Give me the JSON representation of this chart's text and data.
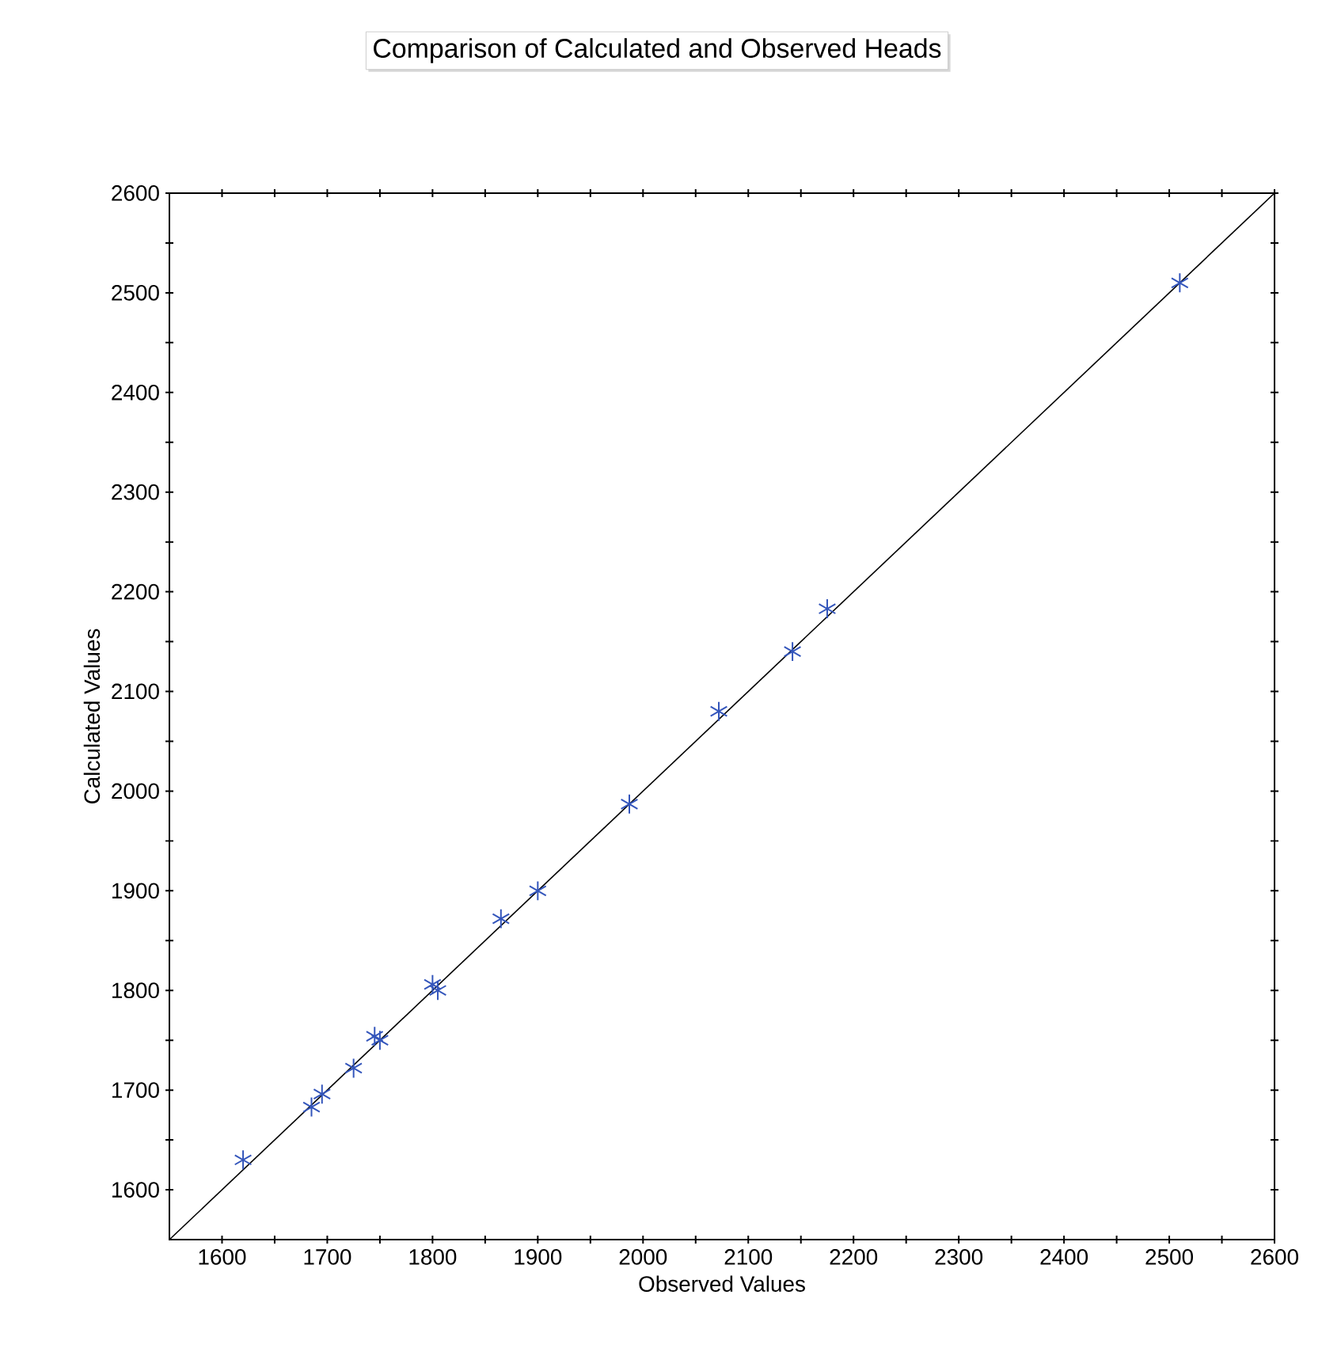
{
  "chart_data": {
    "type": "scatter",
    "title": "Comparison of Calculated and Observed Heads",
    "xlabel": "Observed Values",
    "ylabel": "Calculated Values",
    "xlim": [
      1550,
      2600
    ],
    "ylim": [
      1550,
      2600
    ],
    "xticks": [
      1600,
      {
        "value": 1650,
        "label": null
      },
      1700,
      {
        "value": 1750,
        "label": null
      },
      1800,
      {
        "value": 1850,
        "label": null
      },
      1900,
      {
        "value": 1950,
        "label": null
      },
      2000,
      {
        "value": 2050,
        "label": null
      },
      2100,
      {
        "value": 2150,
        "label": null
      },
      2200,
      {
        "value": 2250,
        "label": null
      },
      2300,
      {
        "value": 2350,
        "label": null
      },
      2400,
      {
        "value": 2450,
        "label": null
      },
      2500,
      {
        "value": 2550,
        "label": null
      },
      2600
    ],
    "yticks": [
      1600,
      {
        "value": 1650,
        "label": null
      },
      1700,
      {
        "value": 1750,
        "label": null
      },
      1800,
      {
        "value": 1850,
        "label": null
      },
      1900,
      {
        "value": 1950,
        "label": null
      },
      2000,
      {
        "value": 2050,
        "label": null
      },
      2100,
      {
        "value": 2150,
        "label": null
      },
      2200,
      {
        "value": 2250,
        "label": null
      },
      2300,
      {
        "value": 2350,
        "label": null
      },
      2400,
      {
        "value": 2450,
        "label": null
      },
      2500,
      {
        "value": 2550,
        "label": null
      },
      2600
    ],
    "marker": "cross",
    "series": [
      {
        "color": "#3355bb",
        "x": [
          1620,
          1685,
          1695,
          1725,
          1745,
          1750,
          1800,
          1805,
          1865,
          1900,
          1987,
          2072,
          2142,
          2175,
          2510
        ],
        "values": [
          1630,
          1683,
          1696,
          1722,
          1754,
          1750,
          1806,
          1800,
          1872,
          1900,
          1987,
          2080,
          2140,
          2183,
          2510
        ]
      },
      {
        "type": "line",
        "color": "#000000",
        "x": [
          1550,
          2600
        ],
        "values": [
          1550,
          2600
        ]
      }
    ]
  }
}
